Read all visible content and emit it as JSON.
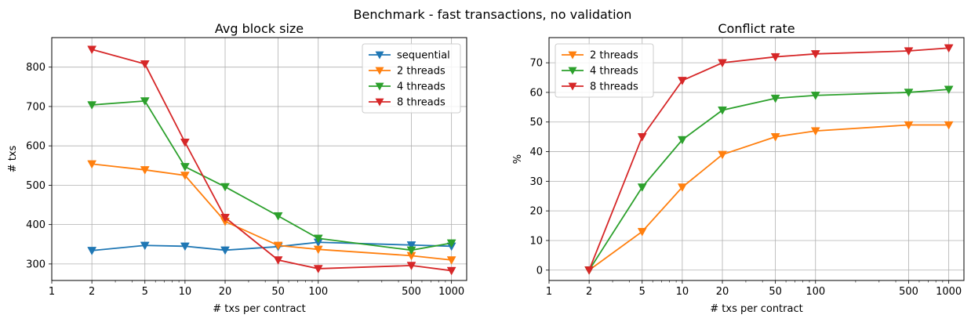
{
  "figure": {
    "suptitle": "Benchmark - fast transactions, no validation"
  },
  "colors": {
    "sequential": "#1f77b4",
    "2 threads": "#ff7f0e",
    "4 threads": "#2ca02c",
    "8 threads": "#d62728",
    "grid": "#b0b0b0"
  },
  "chart_data": [
    {
      "type": "line",
      "title": "Avg block size",
      "xlabel": "# txs per contract",
      "ylabel": "# txs",
      "xscale": "log",
      "xlim": [
        1,
        1300
      ],
      "ylim": [
        258,
        875
      ],
      "xticks": [
        1,
        2,
        5,
        10,
        20,
        50,
        100,
        500,
        1000
      ],
      "yticks": [
        300,
        400,
        500,
        600,
        700,
        800
      ],
      "grid": true,
      "legend": "top-right",
      "marker": "triangle-down",
      "x": [
        2,
        5,
        10,
        20,
        50,
        100,
        500,
        1000
      ],
      "series": [
        {
          "name": "sequential",
          "values": [
            334,
            347,
            345,
            335,
            344,
            355,
            348,
            345
          ]
        },
        {
          "name": "2 threads",
          "values": [
            554,
            539,
            525,
            408,
            347,
            337,
            321,
            310
          ]
        },
        {
          "name": "4 threads",
          "values": [
            704,
            714,
            547,
            496,
            422,
            365,
            335,
            353
          ]
        },
        {
          "name": "8 threads",
          "values": [
            845,
            808,
            609,
            418,
            310,
            288,
            296,
            283
          ]
        }
      ]
    },
    {
      "type": "line",
      "title": "Conflict rate",
      "xlabel": "# txs per contract",
      "ylabel": "%",
      "xscale": "log",
      "xlim": [
        1,
        1300
      ],
      "ylim": [
        -3.5,
        78.5
      ],
      "xticks": [
        1,
        2,
        5,
        10,
        20,
        50,
        100,
        500,
        1000
      ],
      "yticks": [
        0,
        10,
        20,
        30,
        40,
        50,
        60,
        70
      ],
      "grid": true,
      "legend": "top-left",
      "marker": "triangle-down",
      "x": [
        2,
        5,
        10,
        20,
        50,
        100,
        500,
        1000
      ],
      "series": [
        {
          "name": "2 threads",
          "values": [
            0,
            13,
            28,
            39,
            45,
            47,
            49,
            49
          ]
        },
        {
          "name": "4 threads",
          "values": [
            0,
            28,
            44,
            54,
            58,
            59,
            60,
            61
          ]
        },
        {
          "name": "8 threads",
          "values": [
            0,
            45,
            64,
            70,
            72,
            73,
            74,
            75
          ]
        }
      ]
    }
  ]
}
